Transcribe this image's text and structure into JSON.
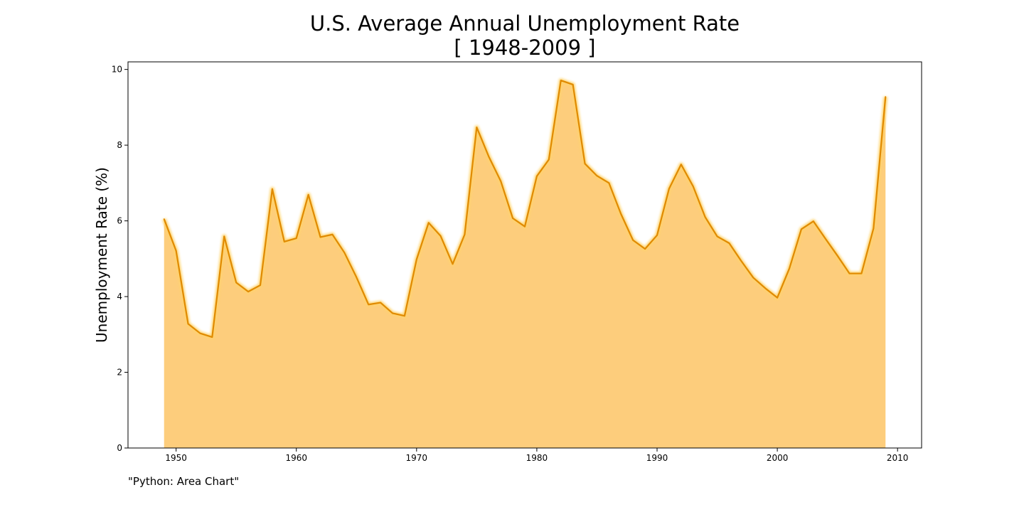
{
  "title": "U.S. Average Annual Unemployment Rate",
  "subtitle": "[ 1948-2009 ]",
  "caption": "\"Python: Area Chart\"",
  "colors": {
    "fill": "#fdcd7c",
    "line": "#e08a00"
  },
  "chart_data": {
    "type": "area",
    "title": "U.S. Average Annual Unemployment Rate",
    "subtitle": "[ 1948-2009 ]",
    "xlabel": "",
    "ylabel": "Unemployment Rate (%)",
    "xlim": [
      1946,
      2012
    ],
    "ylim": [
      0,
      10.2
    ],
    "xticks": [
      1950,
      1960,
      1970,
      1980,
      1990,
      2000,
      2010
    ],
    "yticks": [
      0,
      2,
      4,
      6,
      8,
      10
    ],
    "grid": false,
    "legend": "none",
    "x": [
      1949,
      1950,
      1951,
      1952,
      1953,
      1954,
      1955,
      1956,
      1957,
      1958,
      1959,
      1960,
      1961,
      1962,
      1963,
      1964,
      1965,
      1966,
      1967,
      1968,
      1969,
      1970,
      1971,
      1972,
      1973,
      1974,
      1975,
      1976,
      1977,
      1978,
      1979,
      1980,
      1981,
      1982,
      1983,
      1984,
      1985,
      1986,
      1987,
      1988,
      1989,
      1990,
      1991,
      1992,
      1993,
      1994,
      1995,
      1996,
      1997,
      1998,
      1999,
      2000,
      2001,
      2002,
      2003,
      2004,
      2005,
      2006,
      2007,
      2008,
      2009
    ],
    "y": [
      6.05,
      5.21,
      3.28,
      3.03,
      2.93,
      5.59,
      4.37,
      4.13,
      4.3,
      6.84,
      5.45,
      5.54,
      6.69,
      5.57,
      5.64,
      5.16,
      4.51,
      3.79,
      3.84,
      3.56,
      3.49,
      4.98,
      5.95,
      5.6,
      4.86,
      5.64,
      8.47,
      7.7,
      7.05,
      6.07,
      5.85,
      7.18,
      7.62,
      9.71,
      9.6,
      7.51,
      7.19,
      7.0,
      6.18,
      5.49,
      5.26,
      5.62,
      6.85,
      7.49,
      6.91,
      6.1,
      5.59,
      5.41,
      4.94,
      4.5,
      4.22,
      3.97,
      4.74,
      5.78,
      5.99,
      5.53,
      5.08,
      4.61,
      4.61,
      5.8,
      9.28
    ]
  }
}
